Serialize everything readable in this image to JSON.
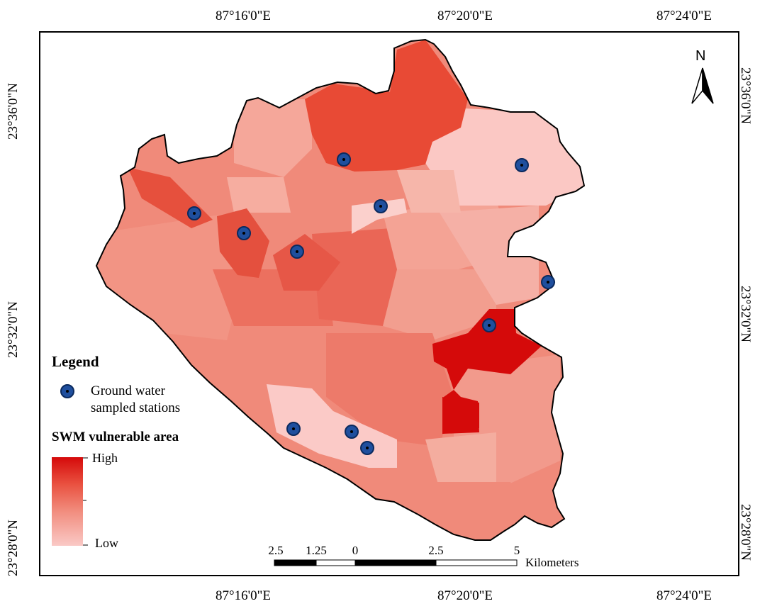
{
  "graticule": {
    "longitude_labels": [
      "87°16'0\"E",
      "87°20'0\"E",
      "87°24'0\"E"
    ],
    "latitude_labels": [
      "23°36'0\"N",
      "23°32'0\"N",
      "23°28'0\"N"
    ]
  },
  "north_arrow": {
    "label": "N"
  },
  "legend": {
    "title": "Legend",
    "station_label_line1": "Ground water",
    "station_label_line2": "sampled stations",
    "ramp_title": "SWM vulnerable area",
    "high_label": "High",
    "low_label": "Low"
  },
  "scale_bar": {
    "labels": [
      "2.5",
      "1.25",
      "0",
      "2.5",
      "5"
    ],
    "unit": "Kilometers"
  },
  "colors": {
    "high": "#d50a0a",
    "upper_mid": "#e9503f",
    "mid": "#f18b7c",
    "low": "#fac9c6",
    "station_fill": "#1f4f9e"
  },
  "stations_count": 11
}
